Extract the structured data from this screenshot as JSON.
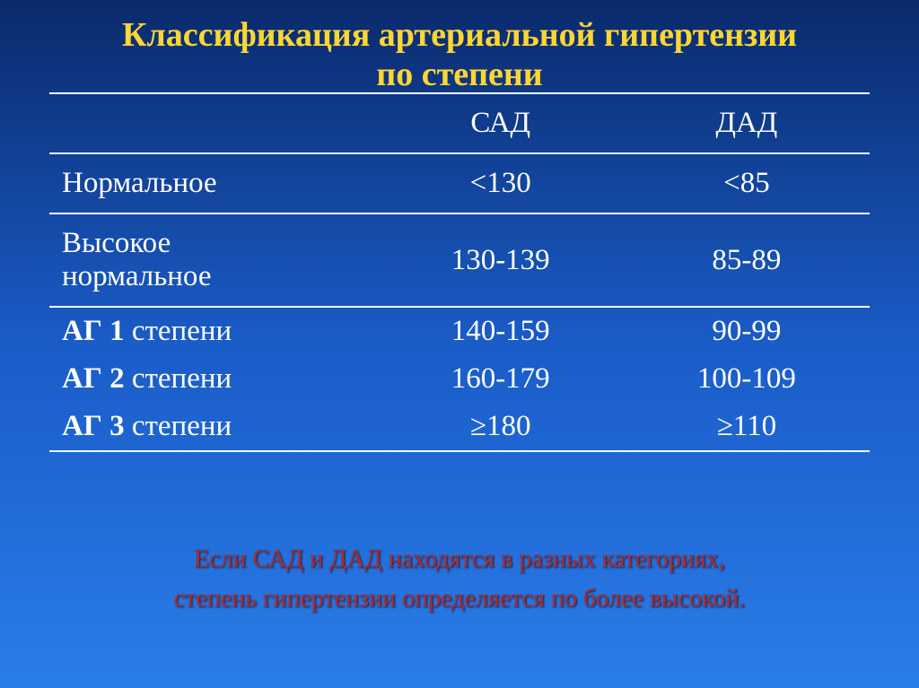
{
  "title_line1": "Классификация артериальной гипертензии",
  "title_line2": "по степени",
  "title_color": "#ffd633",
  "title_fontsize": 38,
  "table": {
    "font_size": 33,
    "text_color": "#ffffff",
    "border_color": "#ffffff",
    "header": {
      "cat": "",
      "sad": "САД",
      "dad": "ДАД"
    },
    "rows": [
      {
        "cat": "Нормальное",
        "sad": "<130",
        "dad": "<85",
        "bold_prefix": "",
        "top_border": true,
        "bottom_border": false,
        "tight": false
      },
      {
        "cat": "Высокое нормальное",
        "sad": "130-139",
        "dad": "85-89",
        "bold_prefix": "",
        "top_border": true,
        "bottom_border": true,
        "tight": false,
        "cat_break": "Высокое|нормальное"
      },
      {
        "cat": "степени",
        "sad": "140-159",
        "dad": "90-99",
        "bold_prefix": "АГ 1",
        "top_border": false,
        "bottom_border": false,
        "tight": true
      },
      {
        "cat": "степени",
        "sad": "160-179",
        "dad": "100-109",
        "bold_prefix": "АГ 2",
        "top_border": false,
        "bottom_border": false,
        "tight": true
      },
      {
        "cat": "степени",
        "sad": "≥180",
        "dad": "≥110",
        "bold_prefix": "АГ 3",
        "top_border": false,
        "bottom_border": true,
        "tight": true
      }
    ]
  },
  "footer": {
    "line1": "Если САД и ДАД находятся в разных категориях,",
    "line2": "степень гипертензии определяется по более высокой.",
    "color": "#b02a2a",
    "shadow_color": "#0a1a3a",
    "font_size": 28
  }
}
